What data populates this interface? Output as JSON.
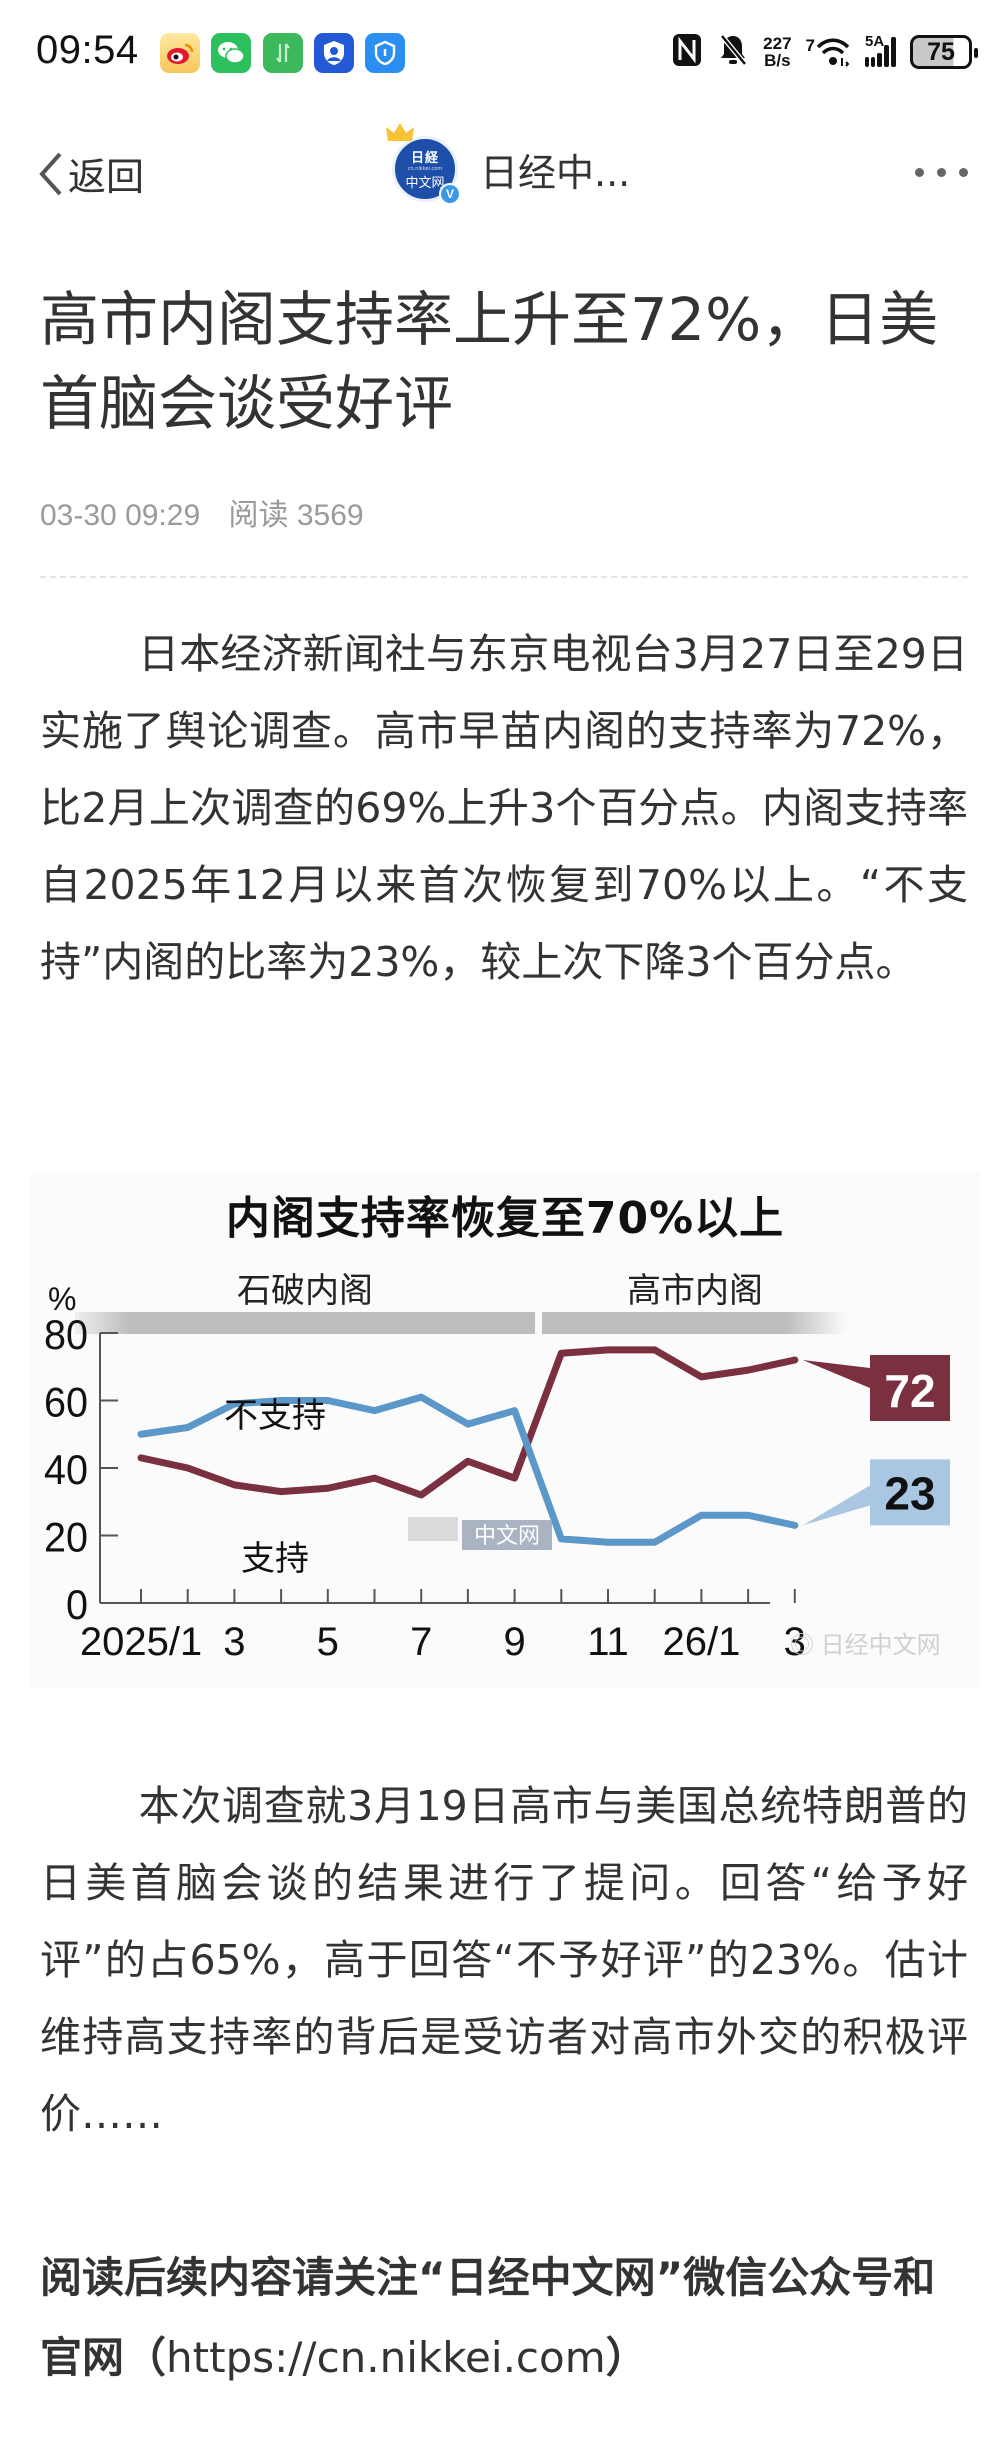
{
  "status_bar": {
    "time": "09:54",
    "notification_icons": [
      "weibo-icon",
      "wechat-icon",
      "data-transfer-icon",
      "account-security-icon",
      "shield-icon"
    ],
    "nfc": "N",
    "net_speed_value": "227",
    "net_speed_unit": "B/s",
    "wifi_label": "7",
    "signal_label": "5A",
    "battery": "75"
  },
  "nav": {
    "back_label": "返回",
    "account_name": "日经中...",
    "avatar_line1": "日経",
    "avatar_line2": "cn.nikkei.com",
    "avatar_line3": "中文网",
    "verified_badge": "V"
  },
  "article": {
    "title": "高市内阁支持率上升至72%，日美首脑会谈受好评",
    "date": "03-30 09:29",
    "reads_label": "阅读",
    "reads_count": "3569",
    "paragraph1": "日本经济新闻社与东京电视台3月27日至29日实施了舆论调查。高市早苗内阁的支持率为72%，比2月上次调查的69%上升3个百分点。内阁支持率自2025年12月以来首次恢复到70%以上。“不支持”内阁的比率为23%，较上次下降3个百分点。",
    "paragraph2": "本次调查就3月19日高市与美国总统特朗普的日美首脑会谈的结果进行了提问。回答“给予好评”的占65%，高于回答“不予好评”的23%。估计维持高支持率的背后是受访者对高市外交的积极评价……",
    "cta_text": "阅读后续内容请关注“日经中文网”微信公众号和官网（",
    "cta_url": "https://cn.nikkei.com",
    "cta_close": "）"
  },
  "chart_image": {
    "watermark": "日経中文网",
    "weibo_watermark": "日经中文网"
  },
  "chart_data": {
    "type": "line",
    "title": "内阁支持率恢复至70%以上",
    "periods": [
      {
        "label": "石破内阁",
        "from": "2025/1",
        "to": "2025/9"
      },
      {
        "label": "高市内阁",
        "from": "2025/10",
        "to": "2026/3"
      }
    ],
    "x": [
      "2025/1",
      "2025/2",
      "2025/3",
      "2025/4",
      "2025/5",
      "2025/6",
      "2025/7",
      "2025/8",
      "2025/9",
      "2025/10",
      "2025/11",
      "2025/12",
      "2026/1",
      "2026/2",
      "2026/3"
    ],
    "x_tick_labels": [
      "2025/1",
      "3",
      "5",
      "7",
      "9",
      "11",
      "26/1",
      "3"
    ],
    "series": [
      {
        "name": "支持",
        "color": "#7b3040",
        "values": [
          43,
          40,
          35,
          33,
          34,
          37,
          32,
          42,
          37,
          74,
          75,
          75,
          67,
          69,
          72
        ],
        "end_label": "72"
      },
      {
        "name": "不支持",
        "color": "#5b97c9",
        "values": [
          50,
          52,
          59,
          60,
          60,
          57,
          61,
          53,
          57,
          19,
          18,
          18,
          26,
          26,
          23
        ],
        "end_label": "23"
      }
    ],
    "ylabel": "%",
    "yticks": [
      0,
      20,
      40,
      60,
      80
    ],
    "ylim": [
      0,
      80
    ],
    "grid": false,
    "legend": "inline labels"
  }
}
